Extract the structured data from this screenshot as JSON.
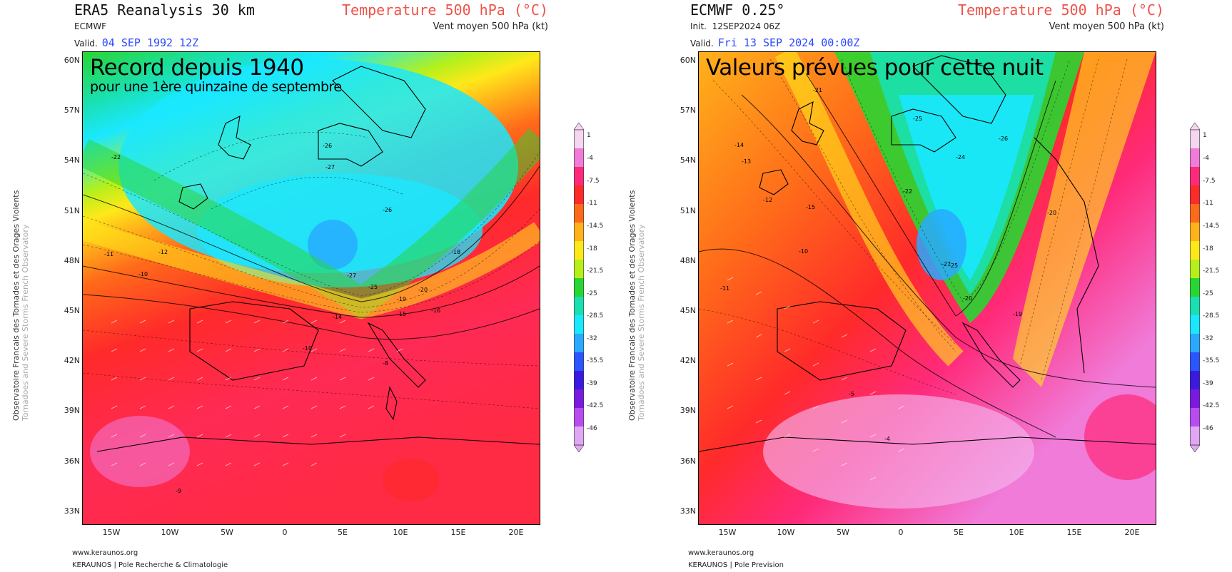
{
  "panels": [
    {
      "model": "ERA5 Reanalysis 30 km",
      "source": "ECMWF",
      "init_label": "",
      "init_value": "",
      "valid_label": "Valid.",
      "valid_value": "04 SEP 1992 12Z",
      "param": "Temperature 500 hPa (°C)",
      "param2": "Vent moyen 500 hPa (kt)",
      "overlay_big": "Record depuis 1940",
      "overlay_small": "pour une 1ère quinzaine de septembre",
      "footer_url": "www.keraunos.org",
      "footer_org": "KERAUNOS | Pole Recherche & Climatologie"
    },
    {
      "model": "ECMWF 0.25°",
      "source": "",
      "init_label": "Init.",
      "init_value": "12SEP2024 06Z",
      "valid_label": "Valid.",
      "valid_value": "Fri 13 SEP 2024 00:00Z",
      "param": "Temperature 500 hPa (°C)",
      "param2": "Vent moyen 500 hPa (kt)",
      "overlay_big": "Valeurs prévues pour cette nuit",
      "overlay_small": "",
      "footer_url": "www.keraunos.org",
      "footer_org": "KERAUNOS | Pole Prevision"
    }
  ],
  "watermark_line1": "Observatoire Francais des Tornades et des Orages Violents",
  "watermark_line2": "Tornadoes and Severe Storms French Observatory",
  "lat_labels": [
    "60N",
    "57N",
    "54N",
    "51N",
    "48N",
    "45N",
    "42N",
    "39N",
    "36N",
    "33N"
  ],
  "lon_labels": [
    "15W",
    "10W",
    "5W",
    "0",
    "5E",
    "10E",
    "15E",
    "20E"
  ],
  "colorbar_ticks": [
    "1",
    "-4",
    "-7.5",
    "-11",
    "-14.5",
    "-18",
    "-21.5",
    "-25",
    "-28.5",
    "-32",
    "-35.5",
    "-39",
    "-42.5",
    "-46"
  ],
  "colorbar_colors": [
    "#f4d6f0",
    "#f07bd8",
    "#ff2a7a",
    "#ff2a2a",
    "#ff6a1a",
    "#ffb21a",
    "#ffe81a",
    "#b6f01a",
    "#28d632",
    "#1ae0b0",
    "#1ae8ff",
    "#29a9ff",
    "#2a55ff",
    "#3a1ae0",
    "#7a1ae0",
    "#b84cf0",
    "#e0a8f4"
  ],
  "contour_labels_left": [
    "-26",
    "-27",
    "-22",
    "-11",
    "-12",
    "-10",
    "-27",
    "-25",
    "-20",
    "-19",
    "-14",
    "-15",
    "-16",
    "-18",
    "-10",
    "-8",
    "-9",
    "-26"
  ],
  "contour_labels_right": [
    "-21",
    "-25",
    "-26",
    "-24",
    "-22",
    "-14",
    "-13",
    "-12",
    "-15",
    "-10",
    "-11",
    "-27",
    "-25",
    "-20",
    "-19",
    "-5",
    "-4",
    "-20"
  ]
}
